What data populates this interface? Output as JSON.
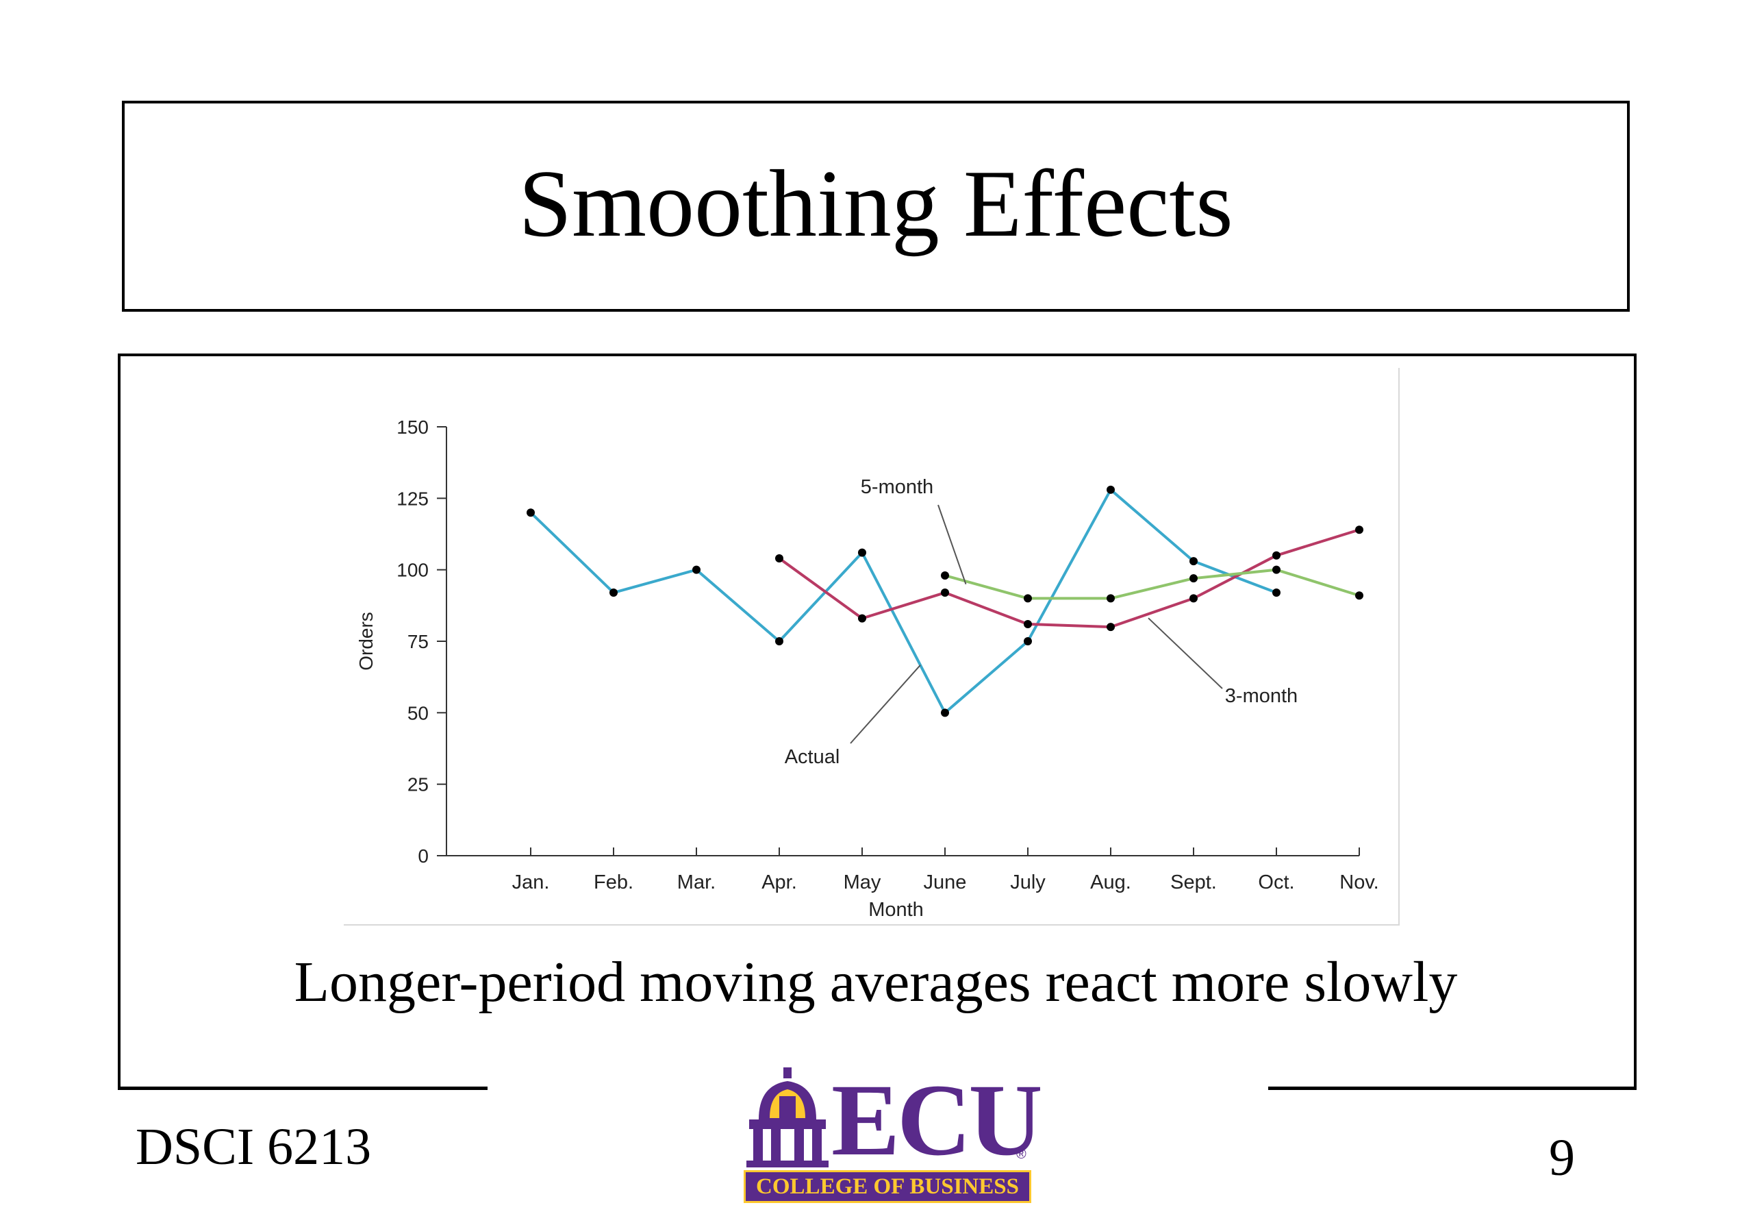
{
  "slide": {
    "title": "Smoothing Effects",
    "caption": "Longer-period moving averages react more slowly",
    "course": "DSCI 6213",
    "page_number": "9"
  },
  "logo": {
    "wordmark": "ECU",
    "registered": "®",
    "band_text": "COLLEGE OF BUSINESS",
    "colors": {
      "purple": "#592a8a",
      "gold": "#fdc82f"
    }
  },
  "chart_data": {
    "type": "line",
    "xlabel": "Month",
    "ylabel": "Orders",
    "categories": [
      "Jan.",
      "Feb.",
      "Mar.",
      "Apr.",
      "May",
      "June",
      "July",
      "Aug.",
      "Sept.",
      "Oct.",
      "Nov."
    ],
    "ylim": [
      0,
      150
    ],
    "yticks": [
      0,
      25,
      50,
      75,
      100,
      125,
      150
    ],
    "grid": false,
    "series": [
      {
        "name": "Actual",
        "color": "#3aa9cc",
        "values": [
          120,
          92,
          100,
          75,
          106,
          50,
          75,
          128,
          103,
          92,
          null
        ]
      },
      {
        "name": "3-month",
        "color": "#b83a64",
        "values": [
          null,
          null,
          null,
          104,
          83,
          92,
          81,
          80,
          90,
          105,
          114
        ]
      },
      {
        "name": "5-month",
        "color": "#8fc46b",
        "values": [
          null,
          null,
          null,
          null,
          null,
          98,
          90,
          90,
          97,
          100,
          91
        ]
      }
    ],
    "annotations": [
      {
        "text": "5-month",
        "series": "5-month"
      },
      {
        "text": "3-month",
        "series": "3-month"
      },
      {
        "text": "Actual",
        "series": "Actual"
      }
    ]
  }
}
